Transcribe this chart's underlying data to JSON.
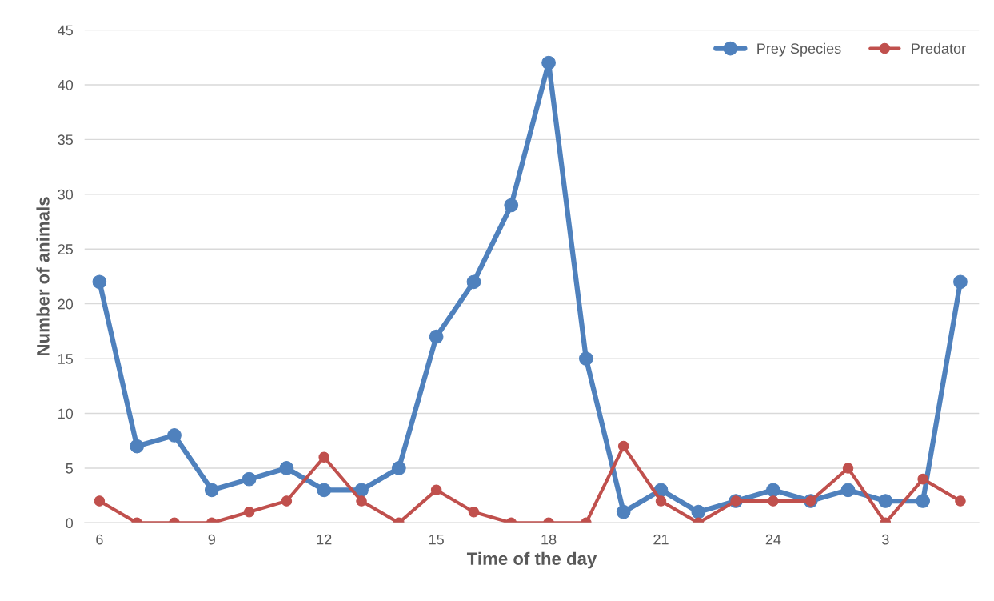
{
  "chart_data": {
    "type": "line",
    "xlabel": "Time of the day",
    "ylabel": "Number of animals",
    "categories": [
      "6",
      null,
      null,
      "9",
      null,
      null,
      "12",
      null,
      null,
      "15",
      null,
      null,
      "18",
      null,
      null,
      "21",
      null,
      null,
      "24",
      null,
      null,
      "3",
      null,
      null
    ],
    "series": [
      {
        "name": "Prey Species",
        "color": "#4f81bd",
        "values": [
          22,
          7,
          8,
          3,
          4,
          5,
          3,
          3,
          5,
          17,
          22,
          29,
          42,
          15,
          1,
          3,
          1,
          2,
          3,
          2,
          3,
          2,
          2,
          22
        ]
      },
      {
        "name": "Predator",
        "color": "#c0504d",
        "values": [
          2,
          0,
          0,
          0,
          1,
          2,
          6,
          2,
          0,
          3,
          1,
          0,
          0,
          0,
          7,
          2,
          0,
          2,
          2,
          2,
          5,
          0,
          4,
          2
        ]
      }
    ],
    "ylim": [
      0,
      45
    ],
    "yticks": [
      0,
      5,
      10,
      15,
      20,
      25,
      30,
      35,
      40,
      45
    ],
    "grid": "y",
    "legend": "top right",
    "marker": "circle",
    "line_style": "solid"
  }
}
